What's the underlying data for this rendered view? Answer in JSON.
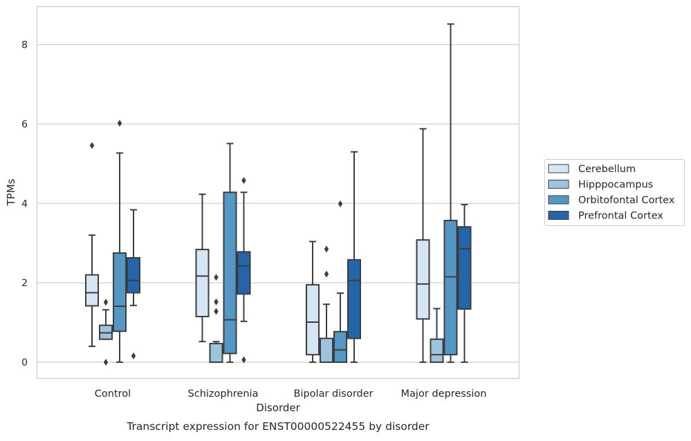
{
  "chart_data": {
    "type": "box",
    "caption": "Transcript expression for ENST00000522455 by disorder",
    "xlabel": "Disorder",
    "ylabel": "TPMs",
    "ylim": [
      -0.4,
      8.95
    ],
    "yticks": [
      0,
      2,
      4,
      6,
      8
    ],
    "grid": "horizontal",
    "legend_position": "right",
    "categories": [
      "Control",
      "Schizophrenia",
      "Bipolar disorder",
      "Major depression"
    ],
    "series": [
      {
        "name": "Cerebellum",
        "color": "#d6e5f3",
        "boxes": [
          {
            "whislo": 0.4,
            "q1": 1.42,
            "med": 1.75,
            "q3": 2.2,
            "whishi": 3.2,
            "fliers": [
              5.46
            ]
          },
          {
            "whislo": 0.52,
            "q1": 1.15,
            "med": 2.17,
            "q3": 2.84,
            "whishi": 4.23,
            "fliers": []
          },
          {
            "whislo": 0.0,
            "q1": 0.19,
            "med": 1.01,
            "q3": 1.95,
            "whishi": 3.04,
            "fliers": []
          },
          {
            "whislo": 0.0,
            "q1": 1.09,
            "med": 1.97,
            "q3": 3.08,
            "whishi": 5.88,
            "fliers": []
          }
        ]
      },
      {
        "name": "Hipppocampus",
        "color": "#9cc4dc",
        "boxes": [
          {
            "whislo": 0.58,
            "q1": 0.58,
            "med": 0.74,
            "q3": 0.93,
            "whishi": 1.32,
            "fliers": [
              0.0,
              1.51
            ]
          },
          {
            "whislo": 0.0,
            "q1": 0.0,
            "med": 0.0,
            "q3": 0.47,
            "whishi": 0.52,
            "fliers": [
              1.28,
              1.52,
              2.14
            ]
          },
          {
            "whislo": 0.0,
            "q1": 0.0,
            "med": 0.0,
            "q3": 0.6,
            "whishi": 1.46,
            "fliers": [
              2.22,
              2.85
            ]
          },
          {
            "whislo": 0.0,
            "q1": 0.0,
            "med": 0.19,
            "q3": 0.58,
            "whishi": 1.35,
            "fliers": []
          }
        ]
      },
      {
        "name": "Orbitofontal Cortex",
        "color": "#5597c4",
        "boxes": [
          {
            "whislo": 0.0,
            "q1": 0.78,
            "med": 1.41,
            "q3": 2.75,
            "whishi": 5.27,
            "fliers": [
              6.02
            ]
          },
          {
            "whislo": 0.0,
            "q1": 0.22,
            "med": 1.07,
            "q3": 4.28,
            "whishi": 5.51,
            "fliers": []
          },
          {
            "whislo": 0.0,
            "q1": 0.0,
            "med": 0.31,
            "q3": 0.77,
            "whishi": 1.74,
            "fliers": [
              3.99
            ]
          },
          {
            "whislo": 0.0,
            "q1": 0.19,
            "med": 2.15,
            "q3": 3.57,
            "whishi": 8.52,
            "fliers": []
          }
        ]
      },
      {
        "name": "Prefrontal Cortex",
        "color": "#2464a8",
        "boxes": [
          {
            "whislo": 1.43,
            "q1": 1.75,
            "med": 2.06,
            "q3": 2.63,
            "whishi": 3.84,
            "fliers": [
              0.16
            ]
          },
          {
            "whislo": 1.03,
            "q1": 1.72,
            "med": 2.42,
            "q3": 2.78,
            "whishi": 4.28,
            "fliers": [
              0.06,
              4.58
            ]
          },
          {
            "whislo": 0.0,
            "q1": 0.6,
            "med": 2.06,
            "q3": 2.58,
            "whishi": 5.3,
            "fliers": []
          },
          {
            "whislo": 0.0,
            "q1": 1.34,
            "med": 2.86,
            "q3": 3.41,
            "whishi": 3.97,
            "fliers": []
          }
        ]
      }
    ]
  }
}
